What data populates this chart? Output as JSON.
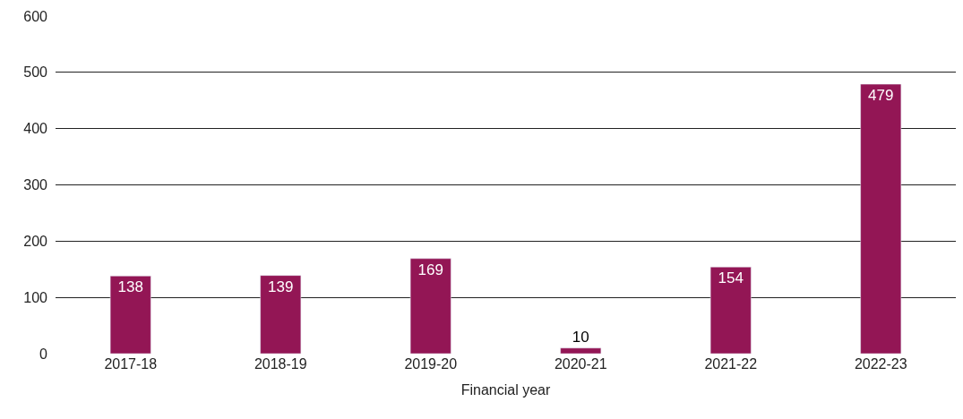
{
  "chart_data": {
    "type": "bar",
    "xlabel": "Financial year",
    "categories": [
      "2017-18",
      "2018-19",
      "2019-20",
      "2020-21",
      "2021-22",
      "2022-23"
    ],
    "values": [
      138,
      139,
      169,
      10,
      154,
      479
    ],
    "color": "#931655",
    "ylim": [
      0,
      600
    ],
    "yticks": [
      0,
      100,
      200,
      300,
      400,
      500,
      600
    ],
    "grid": "y",
    "data_labels": true
  }
}
